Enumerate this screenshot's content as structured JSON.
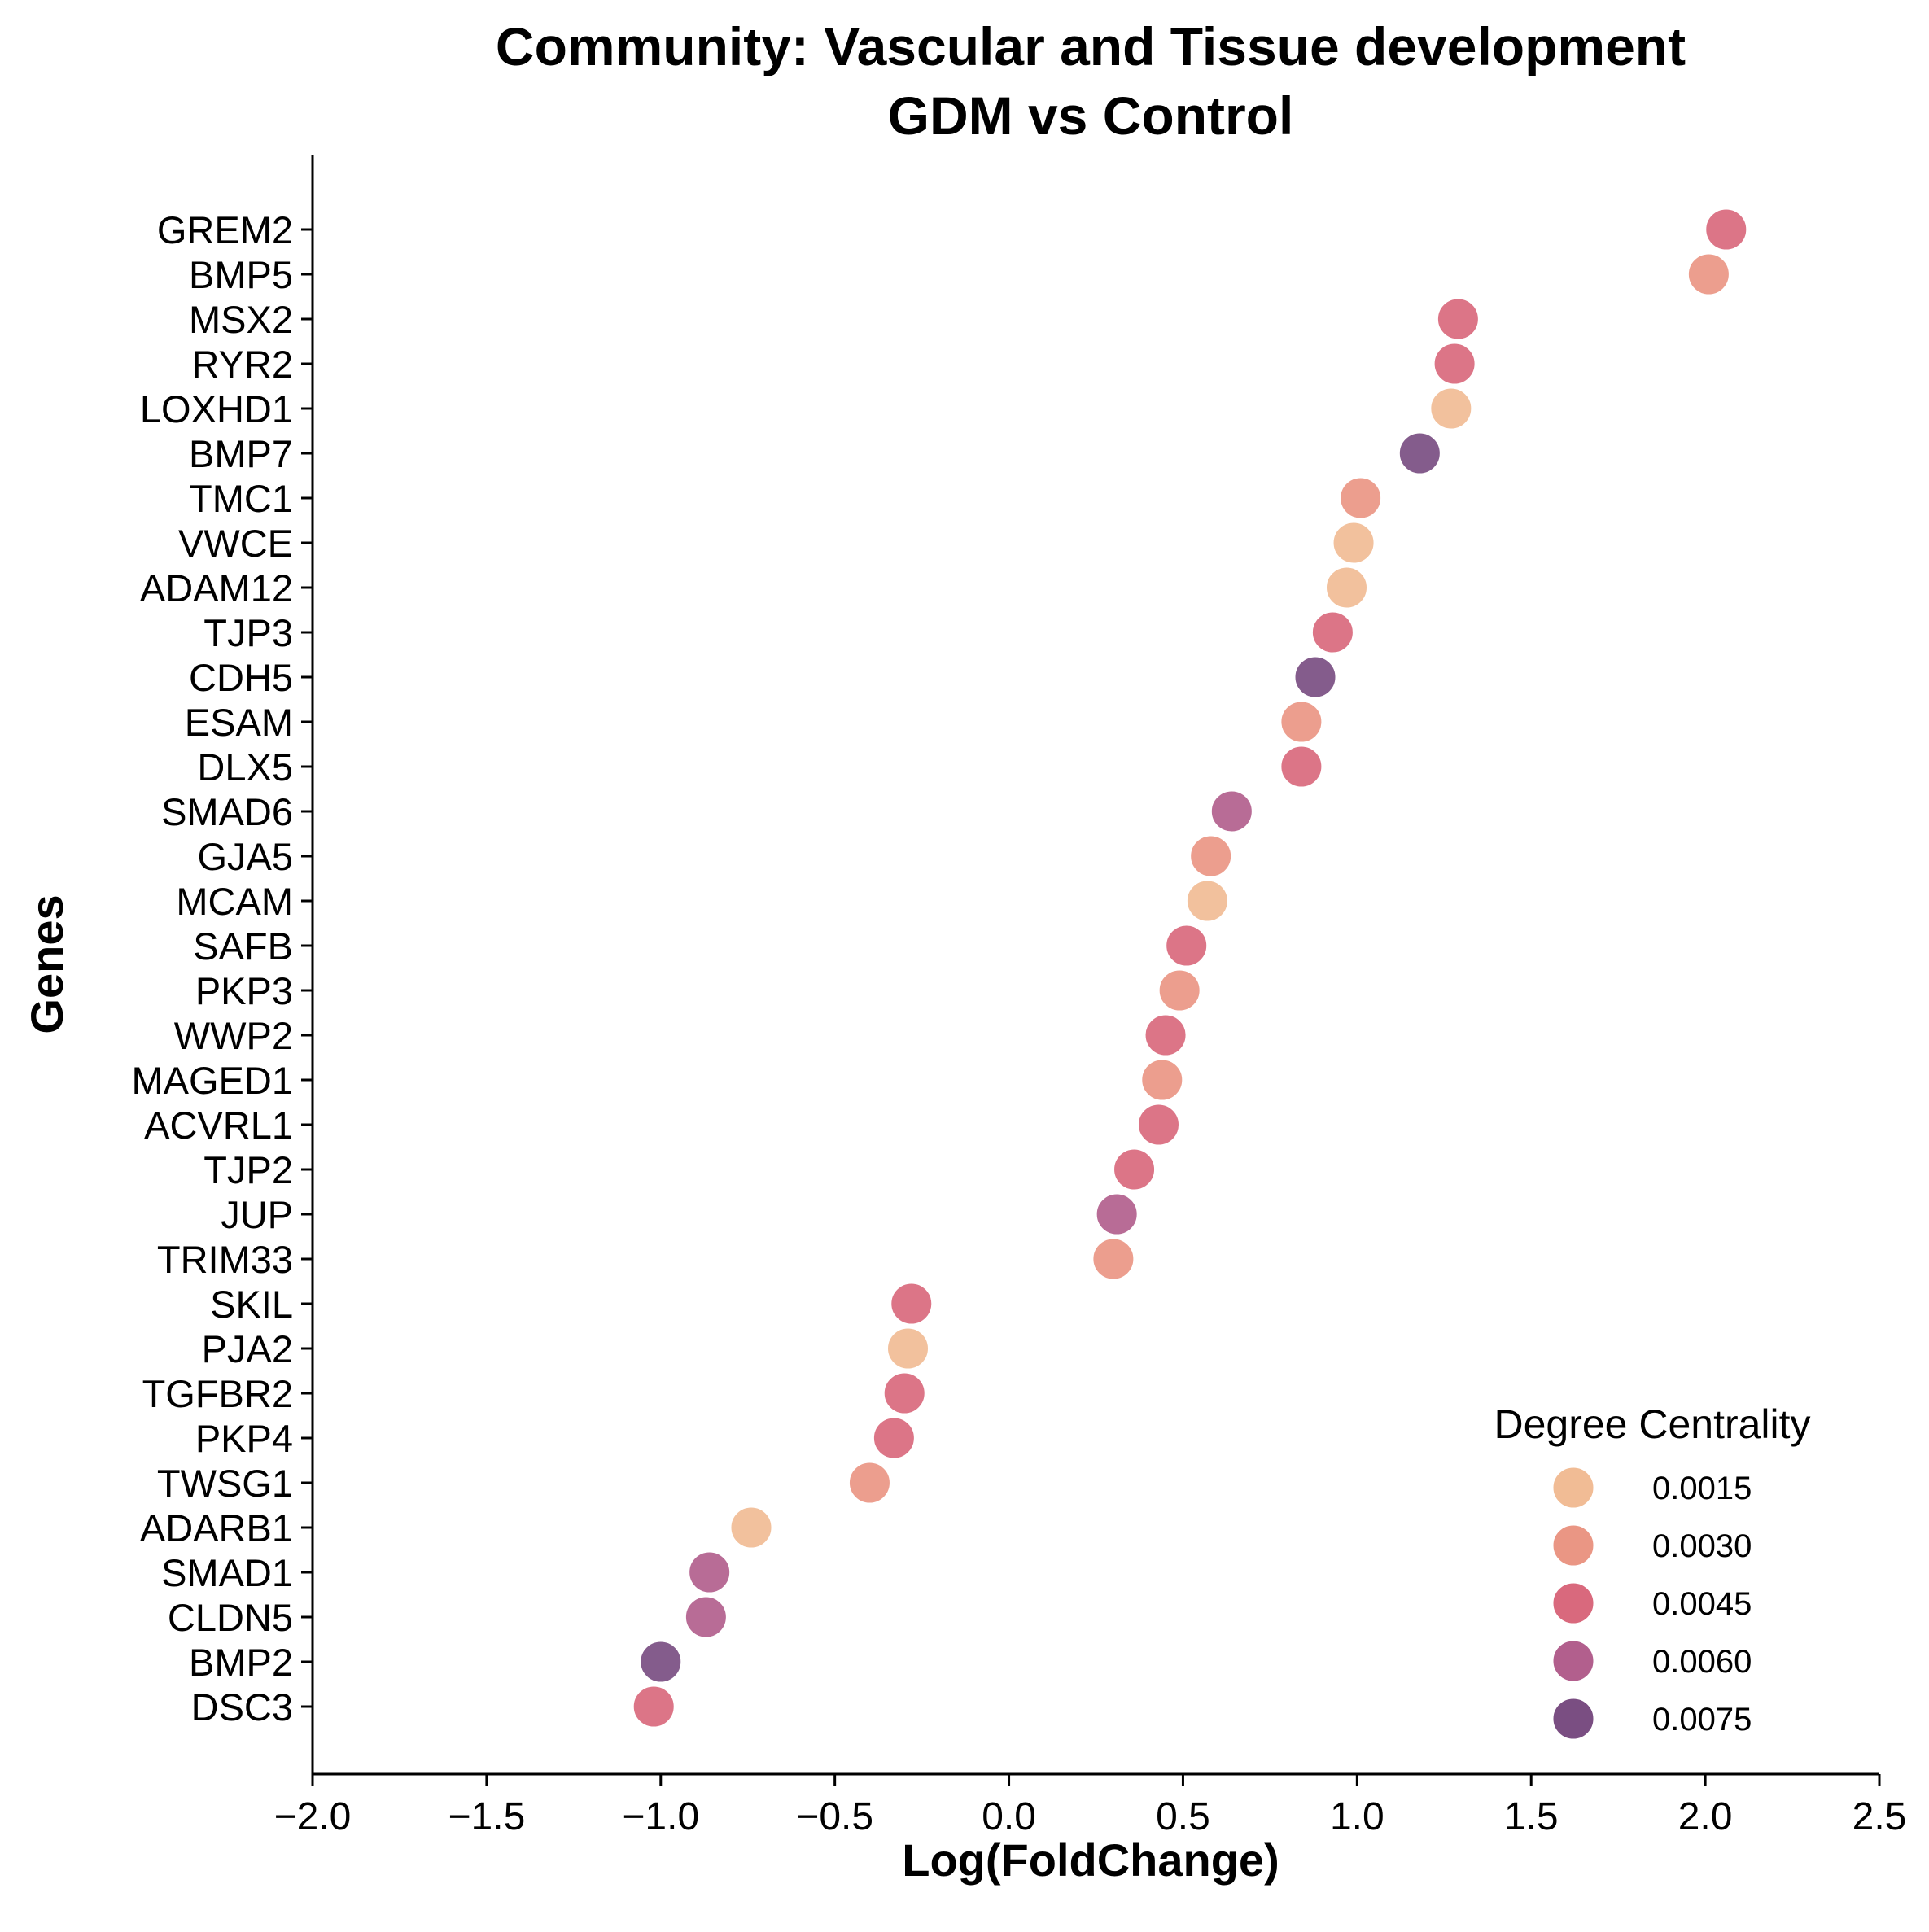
{
  "chart_data": {
    "type": "scatter",
    "title": [
      "Community: Vascular and Tissue development",
      "GDM vs Control"
    ],
    "xlabel": "Log(FoldChange)",
    "ylabel": "Genes",
    "xlim": [
      -2.0,
      2.5
    ],
    "xticks": [
      -2.0,
      -1.5,
      -1.0,
      -0.5,
      0.0,
      0.5,
      1.0,
      1.5,
      2.0,
      2.5
    ],
    "xtick_labels": [
      "−2.0",
      "−1.5",
      "−1.0",
      "−0.5",
      "0.0",
      "0.5",
      "1.0",
      "1.5",
      "2.0",
      "2.5"
    ],
    "grid": false,
    "legend": {
      "title": "Degree Centrality",
      "position": "lower-right",
      "entries": [
        {
          "label": "0.0015",
          "value": 0.0015,
          "color": "#f1bc95"
        },
        {
          "label": "0.0030",
          "value": 0.003,
          "color": "#ea9684"
        },
        {
          "label": "0.0045",
          "value": 0.0045,
          "color": "#d9697d"
        },
        {
          "label": "0.0060",
          "value": 0.006,
          "color": "#b25f8d"
        },
        {
          "label": "0.0075",
          "value": 0.0075,
          "color": "#7a4e82"
        }
      ]
    },
    "points": [
      {
        "gene": "GREM2",
        "x": 2.06,
        "centrality": 0.0045
      },
      {
        "gene": "BMP5",
        "x": 2.01,
        "centrality": 0.003
      },
      {
        "gene": "MSX2",
        "x": 1.29,
        "centrality": 0.0045
      },
      {
        "gene": "RYR2",
        "x": 1.28,
        "centrality": 0.0045
      },
      {
        "gene": "LOXHD1",
        "x": 1.27,
        "centrality": 0.0015
      },
      {
        "gene": "BMP7",
        "x": 1.18,
        "centrality": 0.0075
      },
      {
        "gene": "TMC1",
        "x": 1.01,
        "centrality": 0.003
      },
      {
        "gene": "VWCE",
        "x": 0.99,
        "centrality": 0.0015
      },
      {
        "gene": "ADAM12",
        "x": 0.97,
        "centrality": 0.0015
      },
      {
        "gene": "TJP3",
        "x": 0.93,
        "centrality": 0.0045
      },
      {
        "gene": "CDH5",
        "x": 0.88,
        "centrality": 0.0075
      },
      {
        "gene": "ESAM",
        "x": 0.84,
        "centrality": 0.003
      },
      {
        "gene": "DLX5",
        "x": 0.84,
        "centrality": 0.0045
      },
      {
        "gene": "SMAD6",
        "x": 0.64,
        "centrality": 0.006
      },
      {
        "gene": "GJA5",
        "x": 0.58,
        "centrality": 0.003
      },
      {
        "gene": "MCAM",
        "x": 0.57,
        "centrality": 0.0015
      },
      {
        "gene": "SAFB",
        "x": 0.51,
        "centrality": 0.0045
      },
      {
        "gene": "PKP3",
        "x": 0.49,
        "centrality": 0.003
      },
      {
        "gene": "WWP2",
        "x": 0.45,
        "centrality": 0.0045
      },
      {
        "gene": "MAGED1",
        "x": 0.44,
        "centrality": 0.003
      },
      {
        "gene": "ACVRL1",
        "x": 0.43,
        "centrality": 0.0045
      },
      {
        "gene": "TJP2",
        "x": 0.36,
        "centrality": 0.0045
      },
      {
        "gene": "JUP",
        "x": 0.31,
        "centrality": 0.006
      },
      {
        "gene": "TRIM33",
        "x": 0.3,
        "centrality": 0.003
      },
      {
        "gene": "SKIL",
        "x": -0.28,
        "centrality": 0.0045
      },
      {
        "gene": "PJA2",
        "x": -0.29,
        "centrality": 0.0015
      },
      {
        "gene": "TGFBR2",
        "x": -0.3,
        "centrality": 0.0045
      },
      {
        "gene": "PKP4",
        "x": -0.33,
        "centrality": 0.0045
      },
      {
        "gene": "TWSG1",
        "x": -0.4,
        "centrality": 0.003
      },
      {
        "gene": "ADARB1",
        "x": -0.74,
        "centrality": 0.0015
      },
      {
        "gene": "SMAD1",
        "x": -0.86,
        "centrality": 0.006
      },
      {
        "gene": "CLDN5",
        "x": -0.87,
        "centrality": 0.006
      },
      {
        "gene": "BMP2",
        "x": -1.0,
        "centrality": 0.0075
      },
      {
        "gene": "DSC3",
        "x": -1.02,
        "centrality": 0.0045
      }
    ]
  }
}
